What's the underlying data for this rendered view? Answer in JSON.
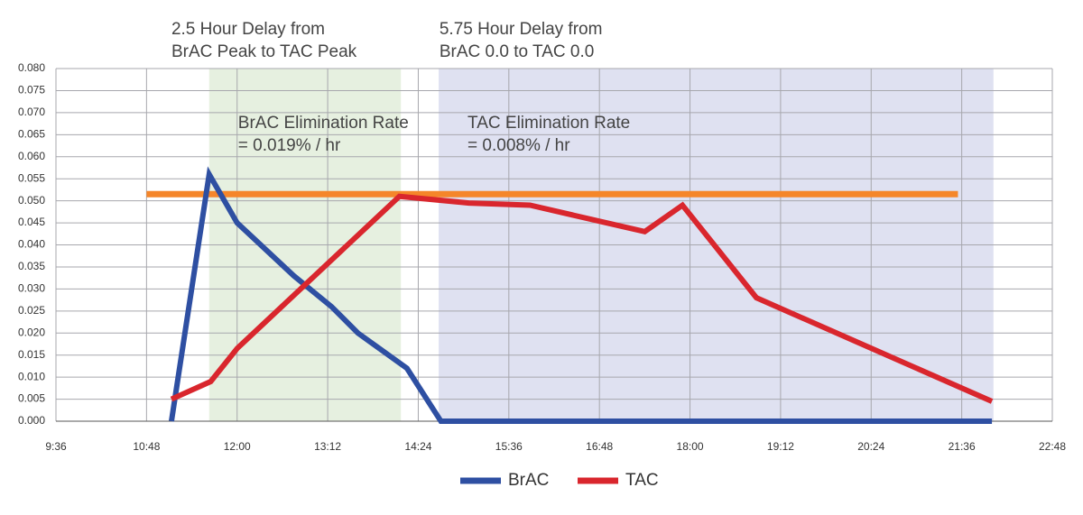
{
  "chart_data": {
    "type": "line",
    "annotations": [
      {
        "lines": [
          "2.5 Hour Delay from",
          "BrAC Peak to TAC Peak"
        ],
        "x": 11.13
      },
      {
        "lines": [
          "5.75 Hour Delay from",
          "BrAC 0.0 to TAC 0.0"
        ],
        "x": 14.68
      }
    ],
    "bands": [
      {
        "x": [
          11.63,
          14.17
        ],
        "color": "#e6f0e0",
        "lines": [
          "BrAC Elimination Rate",
          "= 0.019% / hr"
        ]
      },
      {
        "x": [
          14.67,
          22.02
        ],
        "color": "#dfe1f1",
        "lines": [
          "TAC Elimination Rate",
          "= 0.008% / hr"
        ]
      }
    ],
    "reference_line": {
      "value": 0.0515,
      "x": [
        10.8,
        21.55
      ],
      "color": "#f5862a"
    },
    "series": [
      {
        "name": "BrAC",
        "color": "#2e4fa2",
        "x": [
          11.13,
          11.63,
          12.0,
          12.75,
          13.25,
          13.6,
          14.25,
          14.7,
          22.0
        ],
        "values": [
          0,
          0.056,
          0.045,
          0.033,
          0.026,
          0.02,
          0.012,
          0,
          0
        ]
      },
      {
        "name": "TAC",
        "color": "#d9262d",
        "x": [
          11.13,
          11.65,
          12.0,
          14.15,
          15.07,
          15.88,
          17.4,
          17.9,
          18.88,
          22.0
        ],
        "values": [
          0.005,
          0.009,
          0.0165,
          0.051,
          0.0495,
          0.049,
          0.043,
          0.049,
          0.028,
          0.0045
        ]
      }
    ],
    "xlim": [
      9.6,
      22.8
    ],
    "xticks": [
      {
        "value": 9.6,
        "label": "9:36"
      },
      {
        "value": 10.8,
        "label": "10:48"
      },
      {
        "value": 12,
        "label": "12:00"
      },
      {
        "value": 13.2,
        "label": "13:12"
      },
      {
        "value": 14.4,
        "label": "14:24"
      },
      {
        "value": 15.6,
        "label": "15:36"
      },
      {
        "value": 16.8,
        "label": "16:48"
      },
      {
        "value": 18,
        "label": "18:00"
      },
      {
        "value": 19.2,
        "label": "19:12"
      },
      {
        "value": 20.4,
        "label": "20:24"
      },
      {
        "value": 21.6,
        "label": "21:36"
      },
      {
        "value": 22.8,
        "label": "22:48"
      }
    ],
    "ylim": [
      0,
      0.08
    ],
    "yticks": [
      {
        "value": 0,
        "label": "0.000"
      },
      0.005,
      {
        "value": 0.01,
        "label": "0.010"
      },
      0.015,
      {
        "value": 0.02,
        "label": "0.020"
      },
      0.025,
      {
        "value": 0.03,
        "label": "0.030"
      },
      0.035,
      {
        "value": 0.04,
        "label": "0.040"
      },
      0.045,
      {
        "value": 0.05,
        "label": "0.050"
      },
      0.055,
      {
        "value": 0.06,
        "label": "0.060"
      },
      0.065,
      {
        "value": 0.07,
        "label": "0.070"
      },
      0.075,
      {
        "value": 0.08,
        "label": "0.080"
      }
    ],
    "grid": true
  }
}
